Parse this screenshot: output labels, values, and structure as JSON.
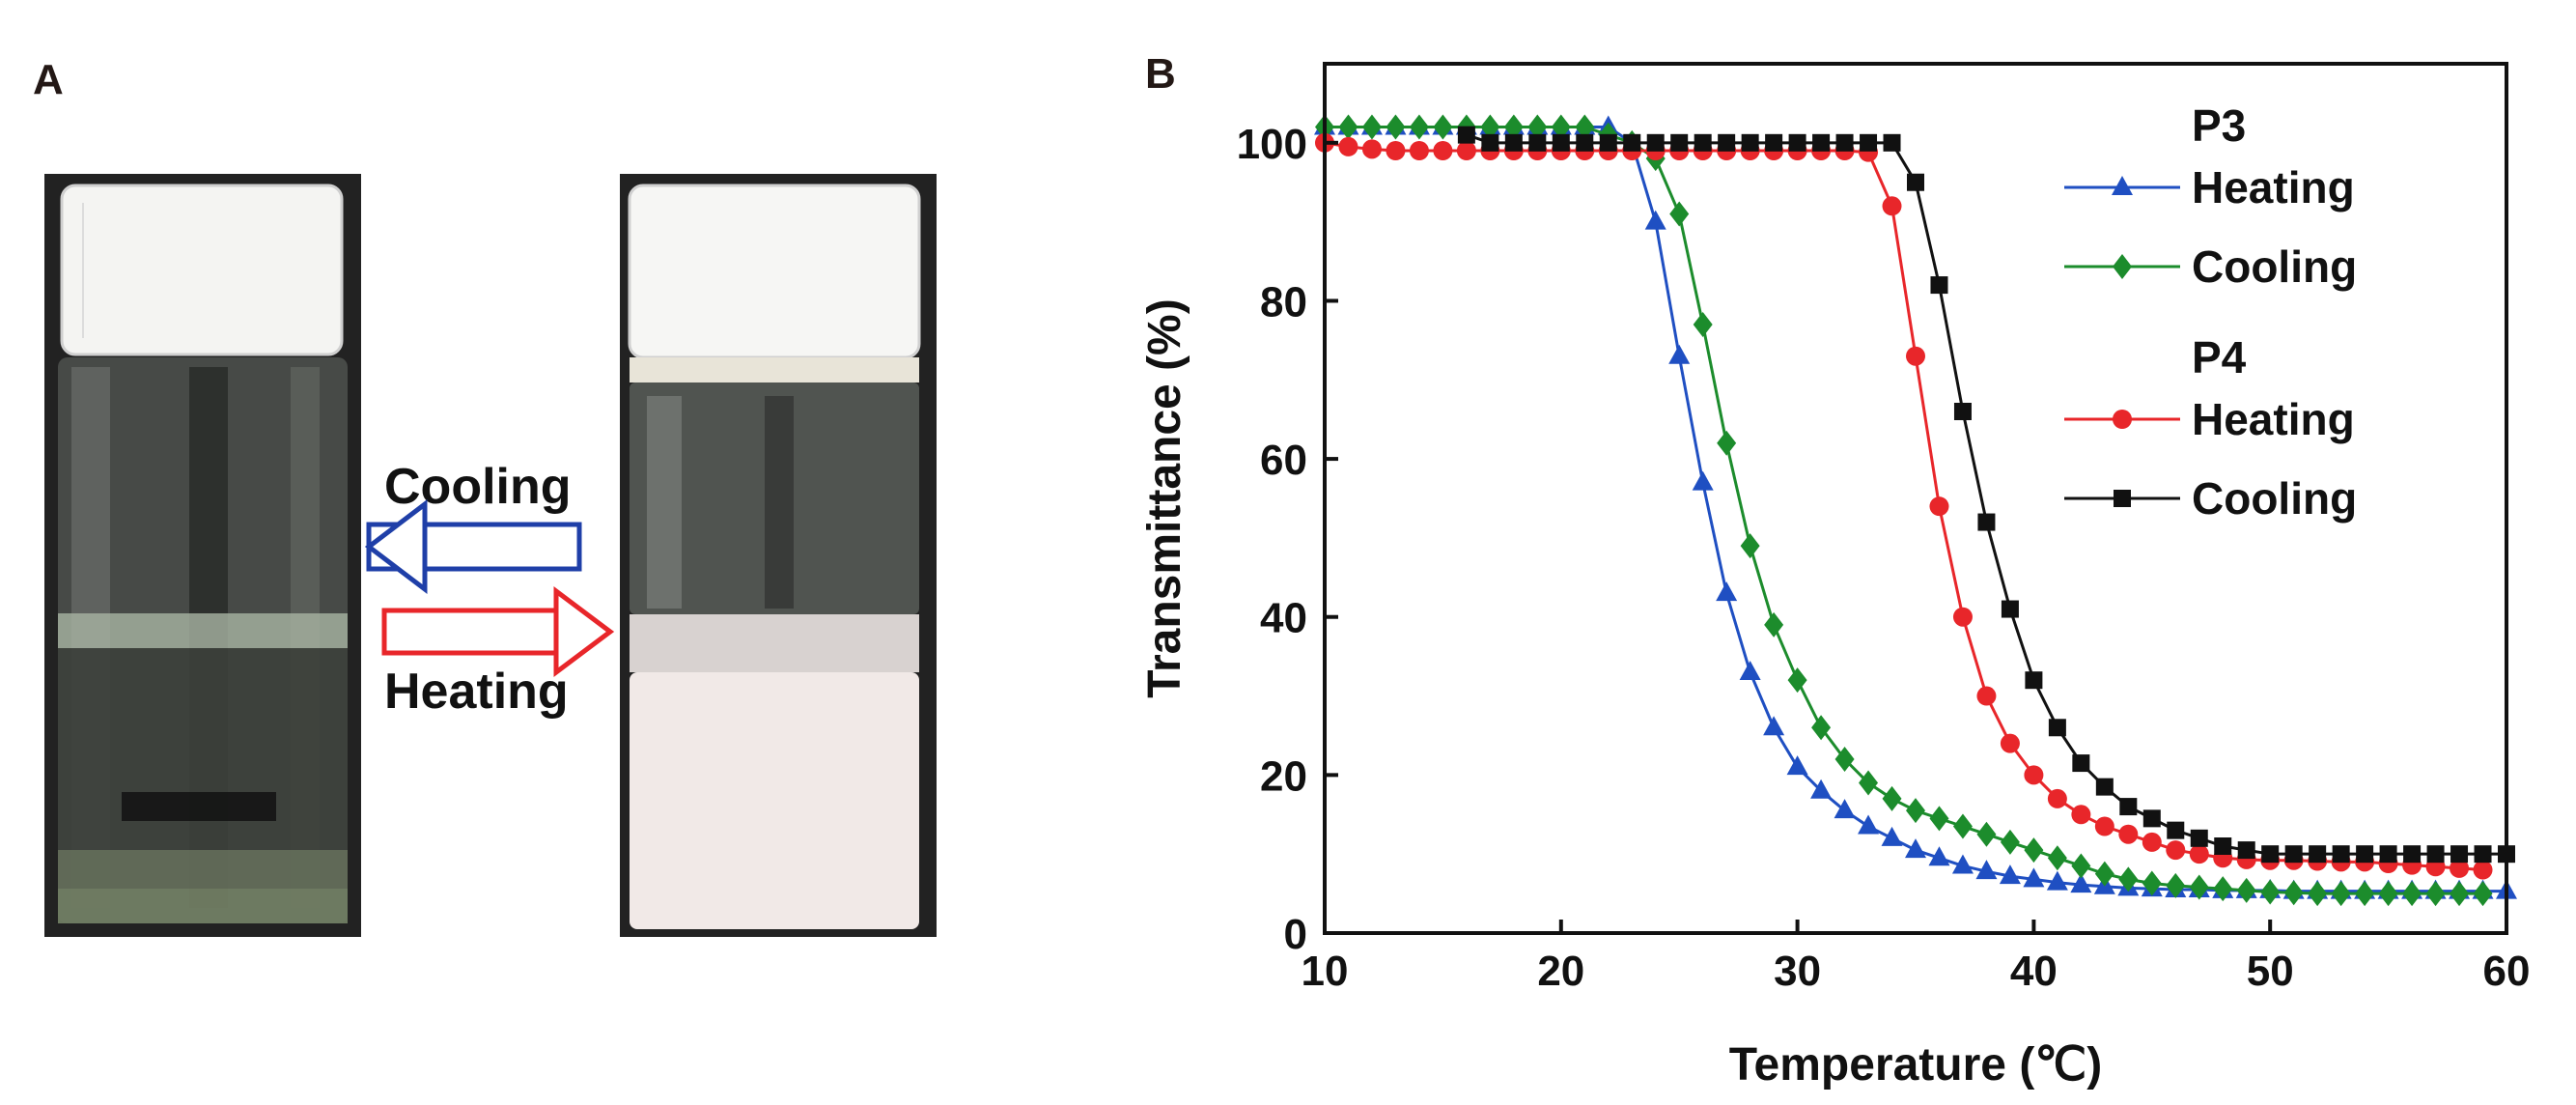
{
  "panel_a": {
    "letter": "A",
    "cooling_label": "Cooling",
    "heating_label": "Heating",
    "vials": [
      {
        "name": "clear-solution-vial",
        "state": "clear"
      },
      {
        "name": "turbid-solution-vial",
        "state": "turbid"
      }
    ],
    "colors": {
      "cooling_arrow": "#1f3fa8",
      "heating_arrow": "#e8262a"
    }
  },
  "panel_b": {
    "letter": "B"
  },
  "chart_data": {
    "type": "line",
    "title": "",
    "xlabel": "Temperature (℃)",
    "ylabel": "Transmittance (%)",
    "xlim": [
      10,
      60
    ],
    "ylim": [
      0,
      110
    ],
    "xticks": [
      10,
      20,
      30,
      40,
      50,
      60
    ],
    "yticks": [
      0,
      20,
      40,
      60,
      80,
      100
    ],
    "legend_groups": [
      {
        "title": "P3",
        "series_indices": [
          0,
          1
        ]
      },
      {
        "title": "P4",
        "series_indices": [
          2,
          3
        ]
      }
    ],
    "series": [
      {
        "group": "P3",
        "name": "Heating",
        "color": "#1f4fc2",
        "marker": "triangle",
        "x": [
          10,
          11,
          12,
          13,
          14,
          15,
          16,
          17,
          18,
          19,
          20,
          21,
          22,
          23,
          24,
          25,
          26,
          27,
          28,
          29,
          30,
          31,
          32,
          33,
          34,
          35,
          36,
          37,
          38,
          39,
          40,
          41,
          42,
          43,
          44,
          45,
          46,
          47,
          48,
          49,
          50,
          51,
          52,
          53,
          54,
          55,
          56,
          57,
          58,
          59,
          60
        ],
        "y": [
          102,
          102,
          102,
          102,
          102,
          102,
          102,
          102,
          102,
          102,
          102,
          102,
          102,
          100,
          90,
          73,
          57,
          43,
          33,
          26,
          21,
          18,
          15.5,
          13.5,
          12,
          10.5,
          9.5,
          8.5,
          7.8,
          7.2,
          6.8,
          6.4,
          6.1,
          5.9,
          5.7,
          5.6,
          5.5,
          5.5,
          5.4,
          5.4,
          5.4,
          5.3,
          5.3,
          5.3,
          5.3,
          5.3,
          5.3,
          5.3,
          5.3,
          5.3,
          5.3
        ]
      },
      {
        "group": "P3",
        "name": "Cooling",
        "color": "#1c8c2c",
        "marker": "diamond",
        "x": [
          10,
          11,
          12,
          13,
          14,
          15,
          16,
          17,
          18,
          19,
          20,
          21,
          22,
          23,
          24,
          25,
          26,
          27,
          28,
          29,
          30,
          31,
          32,
          33,
          34,
          35,
          36,
          37,
          38,
          39,
          40,
          41,
          42,
          43,
          44,
          45,
          46,
          47,
          48,
          49,
          50,
          51,
          52,
          53,
          54,
          55,
          56,
          57,
          58,
          59
        ],
        "y": [
          102,
          102,
          102,
          102,
          102,
          102,
          102,
          102,
          102,
          102,
          102,
          102,
          101,
          100,
          98,
          91,
          77,
          62,
          49,
          39,
          32,
          26,
          22,
          19,
          17,
          15.5,
          14.5,
          13.5,
          12.5,
          11.5,
          10.5,
          9.5,
          8.5,
          7.5,
          6.8,
          6.3,
          6,
          5.8,
          5.6,
          5.4,
          5.2,
          5.1,
          5,
          5,
          5,
          5,
          5,
          5,
          5,
          5
        ]
      },
      {
        "group": "P4",
        "name": "Heating",
        "color": "#e8262a",
        "marker": "circle",
        "x": [
          10,
          11,
          12,
          13,
          14,
          15,
          16,
          17,
          18,
          19,
          20,
          21,
          22,
          23,
          24,
          25,
          26,
          27,
          28,
          29,
          30,
          31,
          32,
          33,
          34,
          35,
          36,
          37,
          38,
          39,
          40,
          41,
          42,
          43,
          44,
          45,
          46,
          47,
          48,
          49,
          50,
          51,
          52,
          53,
          54,
          55,
          56,
          57,
          58,
          59
        ],
        "y": [
          100,
          99.5,
          99.2,
          99,
          99,
          99,
          99,
          99,
          99,
          99,
          99,
          99,
          99,
          99,
          99,
          99,
          99,
          99,
          99,
          99,
          99,
          99,
          99,
          98.8,
          92,
          73,
          54,
          40,
          30,
          24,
          20,
          17,
          15,
          13.5,
          12.5,
          11.5,
          10.5,
          10,
          9.5,
          9.3,
          9.2,
          9.2,
          9.1,
          9,
          9,
          8.8,
          8.6,
          8.4,
          8.2,
          8
        ]
      },
      {
        "group": "P4",
        "name": "Cooling",
        "color": "#111111",
        "marker": "square",
        "x": [
          16,
          17,
          18,
          19,
          20,
          21,
          22,
          23,
          24,
          25,
          26,
          27,
          28,
          29,
          30,
          31,
          32,
          33,
          34,
          35,
          36,
          37,
          38,
          39,
          40,
          41,
          42,
          43,
          44,
          45,
          46,
          47,
          48,
          49,
          50,
          51,
          52,
          53,
          54,
          55,
          56,
          57,
          58,
          59,
          60
        ],
        "y": [
          101,
          100,
          100,
          100,
          100,
          100,
          100,
          100,
          100,
          100,
          100,
          100,
          100,
          100,
          100,
          100,
          100,
          100,
          100,
          95,
          82,
          66,
          52,
          41,
          32,
          26,
          21.5,
          18.5,
          16,
          14.5,
          13,
          12,
          11,
          10.5,
          10,
          10,
          10,
          10,
          10,
          10,
          10,
          10,
          10,
          10,
          10
        ]
      }
    ]
  }
}
